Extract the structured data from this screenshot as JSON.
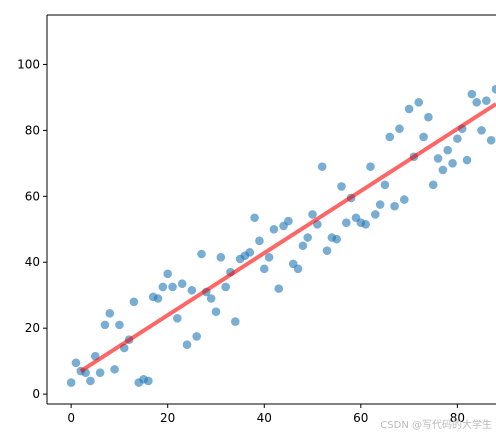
{
  "chart_data": {
    "type": "scatter",
    "title": "",
    "xlabel": "",
    "ylabel": "",
    "xlim": [
      -5,
      88
    ],
    "ylim": [
      -3,
      115
    ],
    "x_ticks": [
      0,
      20,
      40,
      60,
      80
    ],
    "y_ticks": [
      0,
      20,
      40,
      60,
      80,
      100
    ],
    "grid": false,
    "colors": {
      "points": "#1f77b4",
      "fit_line": "#ff0000"
    },
    "points": {
      "x": [
        0,
        1,
        2,
        3,
        4,
        5,
        6,
        7,
        8,
        9,
        10,
        11,
        12,
        13,
        14,
        15,
        16,
        17,
        18,
        19,
        20,
        21,
        22,
        23,
        24,
        25,
        26,
        27,
        28,
        29,
        30,
        31,
        32,
        33,
        34,
        35,
        36,
        37,
        38,
        39,
        40,
        41,
        42,
        43,
        44,
        45,
        46,
        47,
        48,
        49,
        50,
        51,
        52,
        53,
        54,
        55,
        56,
        57,
        58,
        59,
        60,
        61,
        62,
        63,
        64,
        65,
        66,
        67,
        68,
        69,
        70,
        71,
        72,
        73,
        74,
        75,
        76,
        77,
        78,
        79,
        80,
        81,
        82,
        83,
        84,
        85,
        86,
        87,
        88
      ],
      "y": [
        3.5,
        9.5,
        7,
        6.5,
        4,
        11.5,
        6.5,
        21,
        24.5,
        7.5,
        21,
        14,
        16.5,
        28,
        3.5,
        4.5,
        4,
        29.5,
        29,
        32.5,
        36.5,
        32.5,
        23,
        33.5,
        15,
        31.5,
        17.5,
        42.5,
        31,
        29,
        25,
        41.5,
        32.5,
        37,
        22,
        41,
        42,
        43,
        53.5,
        46.5,
        38,
        41.5,
        50,
        32,
        51,
        52.5,
        39.5,
        38,
        45,
        47.5,
        54.5,
        51.5,
        69,
        43.5,
        47.5,
        47,
        63,
        52,
        59.5,
        53.5,
        52,
        51.5,
        69,
        54.5,
        57.5,
        63.5,
        78,
        57,
        80.5,
        59,
        86.5,
        72,
        88.5,
        78,
        84,
        63.5,
        71.5,
        68,
        74,
        70,
        77.5,
        80.5,
        71,
        91,
        88.5,
        80,
        89,
        77,
        92.5
      ]
    },
    "fit_line": {
      "x": [
        2,
        88
      ],
      "y": [
        7.0,
        88.0
      ]
    }
  },
  "watermark": "CSDN @写代码的大学生"
}
